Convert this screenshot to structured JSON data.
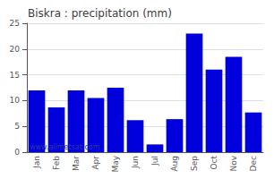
{
  "chart_data": {
    "type": "bar",
    "title": "Biskra : precipitation (mm)",
    "categories": [
      "Jan",
      "Feb",
      "Mar",
      "Apr",
      "May",
      "Jun",
      "Jul",
      "Aug",
      "Sep",
      "Oct",
      "Nov",
      "Dec"
    ],
    "values": [
      12,
      8.7,
      12,
      10.5,
      12.5,
      6.2,
      1.5,
      6.4,
      23,
      16,
      18.5,
      7.7
    ],
    "color": "#0000DD",
    "ylim": [
      0,
      25
    ],
    "yticks": [
      0,
      5,
      10,
      15,
      20,
      25
    ],
    "grid": true,
    "annotations": [
      "www.allmetsat.com"
    ]
  }
}
